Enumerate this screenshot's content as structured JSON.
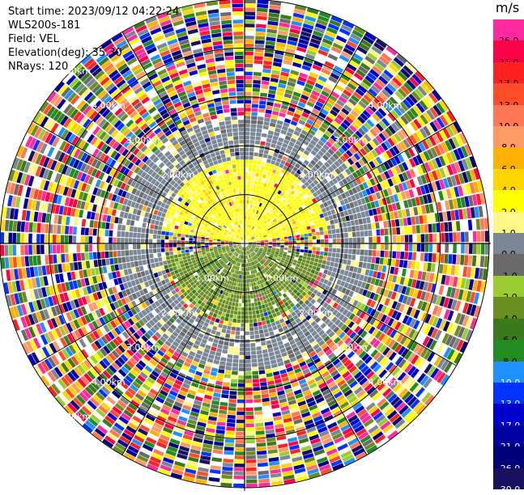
{
  "info": {
    "start_time": "Start time: 2023/09/12 04:22:24",
    "site": "WLS200s-181",
    "field": "Field: VEL",
    "elevation": "Elevation(deg): 35.30",
    "nrays": "NRays: 120"
  },
  "colorbar": {
    "unit": "m/s",
    "levels": [
      {
        "label": "26.0",
        "color": "#ff2aa0"
      },
      {
        "label": "21.0",
        "color": "#ff0048"
      },
      {
        "label": "17.0",
        "color": "#ff2020"
      },
      {
        "label": "13.0",
        "color": "#ff4d2a"
      },
      {
        "label": "10.0",
        "color": "#ff7755"
      },
      {
        "label": "8.0",
        "color": "#ff9966"
      },
      {
        "label": "6.0",
        "color": "#ffb000"
      },
      {
        "label": "4.0",
        "color": "#ffd500"
      },
      {
        "label": "2.0",
        "color": "#ffff00"
      },
      {
        "label": "1.0",
        "color": "#fff68a"
      },
      {
        "label": "0.0",
        "color": "#7a8896"
      },
      {
        "label": "-1.0",
        "color": "#6a6a6a"
      },
      {
        "label": "-2.0",
        "color": "#9acd32"
      },
      {
        "label": "-4.0",
        "color": "#6b8e23"
      },
      {
        "label": "-6.0",
        "color": "#3a7a1c"
      },
      {
        "label": "-8.0",
        "color": "#228b22"
      },
      {
        "label": "-10.0",
        "color": "#1e90ff"
      },
      {
        "label": "-13.0",
        "color": "#0033ff"
      },
      {
        "label": "-17.0",
        "color": "#0000cd"
      },
      {
        "label": "-21.0",
        "color": "#0000a0"
      },
      {
        "label": "-26.0",
        "color": "#00007a"
      },
      {
        "label": "-30.0",
        "color": "#1a1060"
      }
    ]
  },
  "chart_data": {
    "type": "heatmap",
    "projection": "polar-ppi",
    "field": "VEL",
    "units": "m/s",
    "range_rings_km": [
      1.0,
      2.0,
      3.0,
      4.0,
      5.0
    ],
    "ring_labels": [
      {
        "text": "1.00km",
        "km": 1.0,
        "bearing_deg": 225
      },
      {
        "text": "1.00km",
        "km": 1.0,
        "bearing_deg": 135
      },
      {
        "text": "2.00km",
        "km": 2.0,
        "bearing_deg": 315
      },
      {
        "text": "2.00km",
        "km": 2.0,
        "bearing_deg": 45
      },
      {
        "text": "2.00km",
        "km": 2.0,
        "bearing_deg": 225
      },
      {
        "text": "2.00km",
        "km": 2.0,
        "bearing_deg": 135
      },
      {
        "text": "3.00km",
        "km": 3.0,
        "bearing_deg": 315
      },
      {
        "text": "3.00km",
        "km": 3.0,
        "bearing_deg": 45
      },
      {
        "text": "3.00km",
        "km": 3.0,
        "bearing_deg": 225
      },
      {
        "text": "3.00km",
        "km": 3.0,
        "bearing_deg": 135
      },
      {
        "text": "4.00km",
        "km": 4.0,
        "bearing_deg": 315
      },
      {
        "text": "4.00km",
        "km": 4.0,
        "bearing_deg": 45
      },
      {
        "text": "4.00km",
        "km": 4.0,
        "bearing_deg": 225
      },
      {
        "text": "4.00km",
        "km": 4.0,
        "bearing_deg": 135
      },
      {
        "text": "5.00km",
        "km": 5.0,
        "bearing_deg": 315
      },
      {
        "text": "5.00km",
        "km": 5.0,
        "bearing_deg": 225
      }
    ],
    "max_range_km": 5.0,
    "nrays": 120,
    "regions": [
      {
        "bearing_range_deg": [
          280,
          80
        ],
        "range_km": [
          0.1,
          1.7
        ],
        "value_ms": 2.0
      },
      {
        "bearing_range_deg": [
          100,
          260
        ],
        "range_km": [
          0.1,
          1.6
        ],
        "value_ms": -4.0
      },
      {
        "bearing_range_deg": [
          0,
          360
        ],
        "range_km": [
          1.7,
          2.6
        ],
        "value_ms": 0.0
      },
      {
        "bearing_range_deg": [
          0,
          360
        ],
        "range_km": [
          2.6,
          5.0
        ],
        "value_ms": "noise"
      }
    ]
  }
}
